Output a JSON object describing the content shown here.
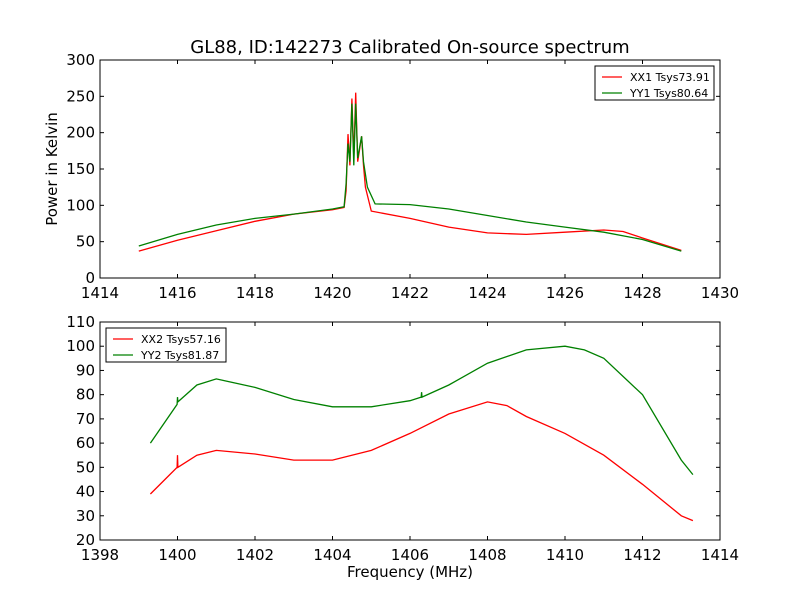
{
  "title": "GL88, ID:142273 Calibrated On-source spectrum",
  "chart_data": [
    {
      "type": "line",
      "title": "GL88, ID:142273 Calibrated On-source spectrum",
      "xlabel": "",
      "ylabel": "Power in Kelvin",
      "xlim": [
        1414,
        1430
      ],
      "ylim": [
        0,
        300
      ],
      "xticks": [
        1414,
        1416,
        1418,
        1420,
        1422,
        1424,
        1426,
        1428,
        1430
      ],
      "yticks": [
        0,
        50,
        100,
        150,
        200,
        250,
        300
      ],
      "legend": "top-right",
      "series": [
        {
          "name": "XX1 Tsys73.91",
          "color": "#ff0000",
          "x": [
            1415,
            1416,
            1417,
            1418,
            1419,
            1420,
            1420.3,
            1420.35,
            1420.4,
            1420.45,
            1420.5,
            1420.55,
            1420.6,
            1420.65,
            1420.75,
            1420.8,
            1420.85,
            1421,
            1422,
            1423,
            1424,
            1425,
            1426,
            1427,
            1427.5,
            1428,
            1429
          ],
          "y": [
            37,
            52,
            65,
            78,
            88,
            94,
            97,
            120,
            198,
            155,
            247,
            165,
            255,
            160,
            195,
            155,
            125,
            92,
            82,
            70,
            62,
            60,
            63,
            66,
            64,
            55,
            38
          ]
        },
        {
          "name": "YY1 Tsys80.64",
          "color": "#008000",
          "x": [
            1415,
            1416,
            1417,
            1418,
            1419,
            1420,
            1420.3,
            1420.35,
            1420.4,
            1420.45,
            1420.5,
            1420.55,
            1420.6,
            1420.65,
            1420.75,
            1420.8,
            1420.9,
            1421.1,
            1422,
            1423,
            1424,
            1425,
            1426,
            1427,
            1428,
            1429
          ],
          "y": [
            44,
            60,
            73,
            82,
            88,
            95,
            98,
            130,
            185,
            160,
            240,
            155,
            240,
            165,
            195,
            160,
            125,
            102,
            101,
            95,
            86,
            77,
            70,
            63,
            53,
            37
          ]
        }
      ]
    },
    {
      "type": "line",
      "title": "",
      "xlabel": "Frequency (MHz)",
      "ylabel": "",
      "xlim": [
        1398,
        1414
      ],
      "ylim": [
        20,
        110
      ],
      "xticks": [
        1398,
        1400,
        1402,
        1404,
        1406,
        1408,
        1410,
        1412,
        1414
      ],
      "yticks": [
        20,
        30,
        40,
        50,
        60,
        70,
        80,
        90,
        100,
        110
      ],
      "legend": "top-left",
      "series": [
        {
          "name": "XX2 Tsys57.16",
          "color": "#ff0000",
          "x": [
            1399.3,
            1399.99,
            1400,
            1400.01,
            1400.5,
            1401,
            1402,
            1403,
            1404,
            1405,
            1406,
            1407,
            1408,
            1408.5,
            1409,
            1410,
            1411,
            1412,
            1413,
            1413.3
          ],
          "y": [
            39,
            50,
            55,
            50,
            55,
            57,
            55.5,
            53,
            53,
            57,
            64,
            72,
            77,
            75.5,
            71,
            64,
            55,
            43,
            30,
            28
          ]
        },
        {
          "name": "YY2 Tsys81.87",
          "color": "#008000",
          "x": [
            1399.3,
            1399.99,
            1400,
            1400.01,
            1400.5,
            1401,
            1402,
            1403,
            1404,
            1405,
            1406,
            1406.29,
            1406.3,
            1406.31,
            1407,
            1408,
            1409,
            1410,
            1410.5,
            1411,
            1412,
            1413,
            1413.3
          ],
          "y": [
            60,
            76,
            79,
            77,
            84,
            86.5,
            83,
            78,
            75,
            75,
            77.5,
            79,
            81,
            79,
            84,
            93,
            98.5,
            100,
            98.5,
            95,
            80,
            53,
            47
          ]
        }
      ]
    }
  ]
}
